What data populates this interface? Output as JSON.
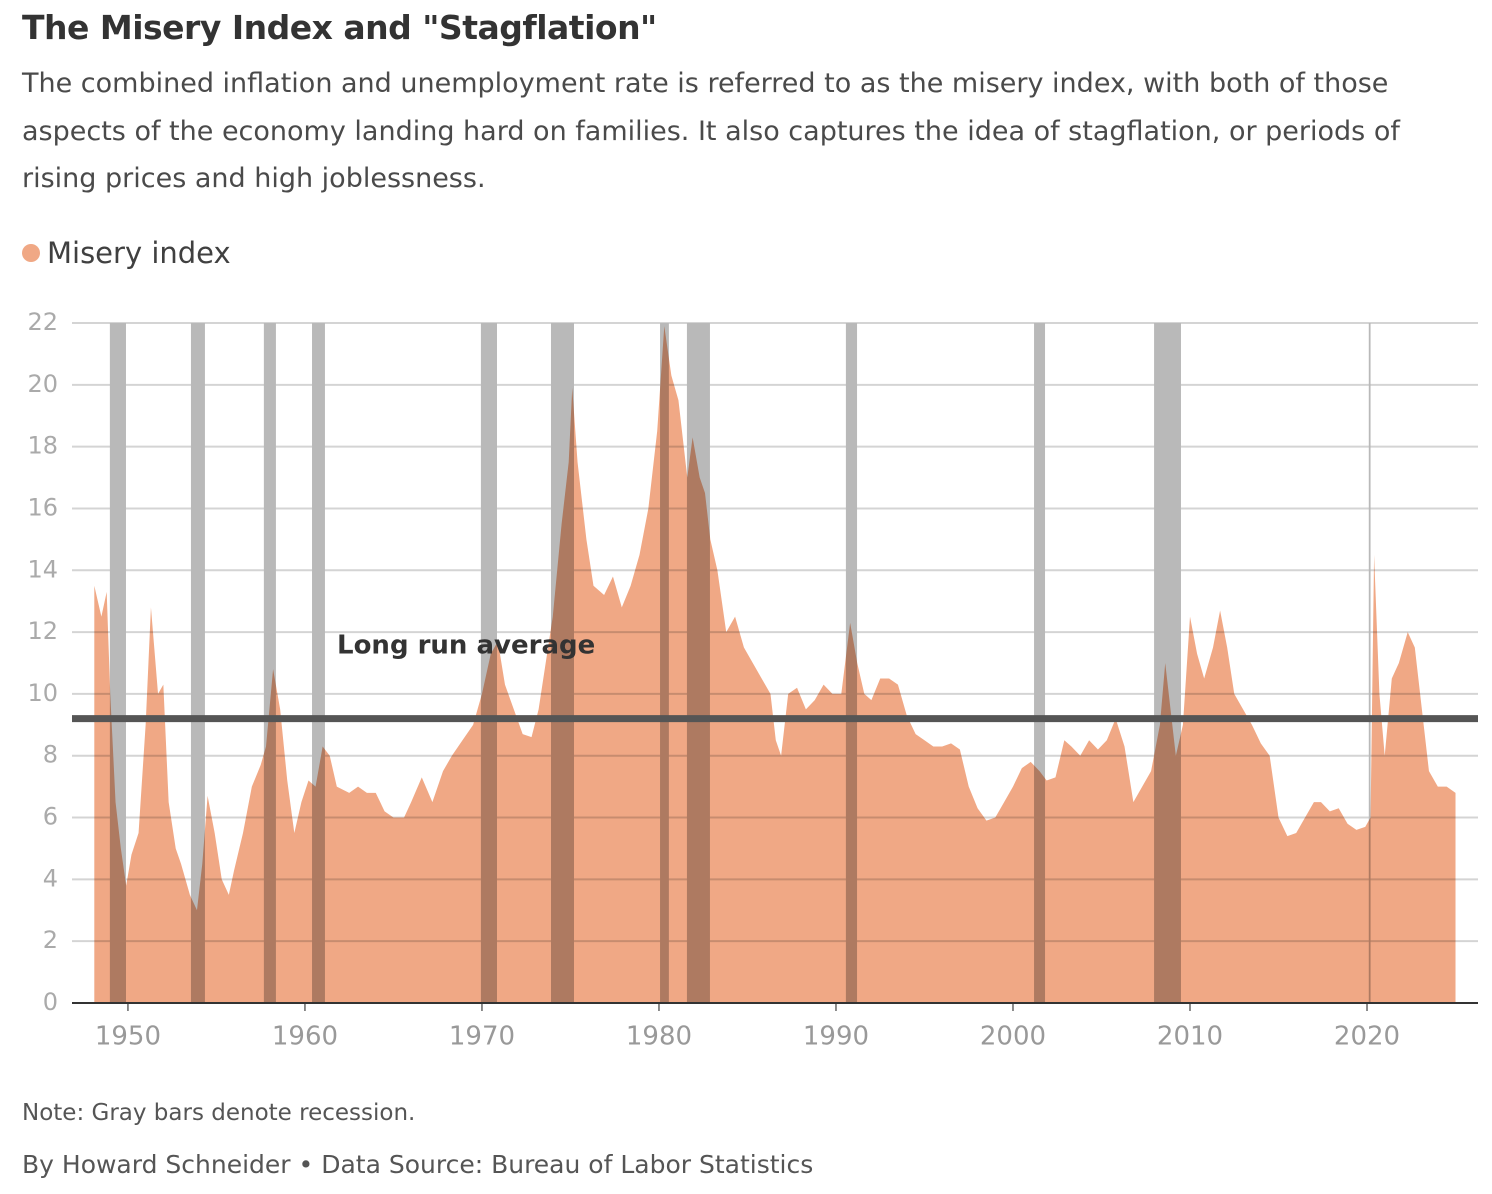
{
  "chart_data": {
    "type": "area",
    "title": "The Misery Index and \"Stagflation\"",
    "subtitle": "The combined inflation and unemployment rate is referred to as the misery index, with both of those aspects of the economy landing hard on families. It also captures the idea of stagflation, or periods of rising prices and high joblessness.",
    "note": "Note: Gray bars denote recession.",
    "source": "By Howard Schneider • Data Source: Bureau of Labor Statistics",
    "x": [
      1948.1,
      1948.5,
      1948.8,
      1949.0,
      1949.3,
      1949.6,
      1949.9,
      1950.2,
      1950.6,
      1951.0,
      1951.3,
      1951.7,
      1952.0,
      1952.3,
      1952.7,
      1953.0,
      1953.5,
      1953.9,
      1954.2,
      1954.5,
      1954.9,
      1955.3,
      1955.7,
      1956.0,
      1956.5,
      1957.0,
      1957.5,
      1957.8,
      1958.2,
      1958.6,
      1959.0,
      1959.4,
      1959.8,
      1960.2,
      1960.6,
      1961.0,
      1961.4,
      1961.8,
      1962.5,
      1963.0,
      1963.5,
      1964.0,
      1964.5,
      1965.0,
      1965.6,
      1966.0,
      1966.6,
      1967.2,
      1967.8,
      1968.3,
      1968.9,
      1969.5,
      1970.0,
      1970.5,
      1970.9,
      1971.3,
      1971.8,
      1972.3,
      1972.8,
      1973.2,
      1973.6,
      1974.0,
      1974.5,
      1974.9,
      1975.1,
      1975.4,
      1975.9,
      1976.3,
      1976.9,
      1977.4,
      1977.9,
      1978.4,
      1978.9,
      1979.4,
      1979.9,
      1980.3,
      1980.7,
      1981.1,
      1981.6,
      1981.9,
      1982.3,
      1982.6,
      1982.9,
      1983.3,
      1983.8,
      1984.3,
      1984.8,
      1985.3,
      1985.8,
      1986.3,
      1986.6,
      1986.9,
      1987.3,
      1987.8,
      1988.3,
      1988.8,
      1989.3,
      1989.8,
      1990.3,
      1990.8,
      1991.2,
      1991.6,
      1992.0,
      1992.5,
      1993.0,
      1993.5,
      1994.0,
      1994.5,
      1995.0,
      1995.5,
      1996.0,
      1996.5,
      1997.0,
      1997.5,
      1998.0,
      1998.5,
      1999.0,
      1999.5,
      2000.0,
      2000.5,
      2001.0,
      2001.5,
      2001.9,
      2002.4,
      2002.9,
      2003.3,
      2003.8,
      2004.3,
      2004.8,
      2005.3,
      2005.8,
      2006.3,
      2006.8,
      2007.3,
      2007.8,
      2008.3,
      2008.6,
      2008.9,
      2009.2,
      2009.6,
      2010.0,
      2010.4,
      2010.8,
      2011.3,
      2011.7,
      2012.1,
      2012.5,
      2013.0,
      2013.5,
      2014.0,
      2014.5,
      2015.0,
      2015.5,
      2016.0,
      2016.5,
      2017.0,
      2017.4,
      2017.9,
      2018.4,
      2018.9,
      2019.4,
      2019.9,
      2020.2,
      2020.4,
      2020.7,
      2021.0,
      2021.4,
      2021.8,
      2022.3,
      2022.7,
      2023.1,
      2023.5,
      2024.0,
      2024.5,
      2025.0
    ],
    "series": [
      {
        "name": "Misery index",
        "color": "#f0a885",
        "values": [
          13.5,
          12.5,
          13.3,
          10,
          6.5,
          5,
          3.8,
          4.8,
          5.5,
          9,
          12.8,
          10,
          10.3,
          6.5,
          5,
          4.5,
          3.5,
          3,
          4.5,
          6.7,
          5.5,
          4,
          3.5,
          4.3,
          5.5,
          7,
          7.7,
          8.3,
          10.8,
          9.5,
          7.2,
          5.5,
          6.5,
          7.2,
          7,
          8.3,
          8,
          7,
          6.8,
          7,
          6.8,
          6.8,
          6.2,
          6,
          6,
          6.5,
          7.3,
          6.5,
          7.5,
          8,
          8.5,
          9,
          10,
          11.3,
          11.7,
          10.3,
          9.5,
          8.7,
          8.6,
          9.5,
          11,
          12.5,
          15.5,
          17.5,
          19.9,
          17.5,
          15,
          13.5,
          13.2,
          13.8,
          12.8,
          13.5,
          14.5,
          16,
          18.5,
          21.9,
          20.3,
          19.5,
          17,
          18.3,
          17,
          16.5,
          15,
          14,
          12,
          12.5,
          11.5,
          11,
          10.5,
          10,
          8.5,
          8,
          10,
          10.2,
          9.5,
          9.8,
          10.3,
          10,
          10,
          12.3,
          11,
          10,
          9.8,
          10.5,
          10.5,
          10.3,
          9.3,
          8.7,
          8.5,
          8.3,
          8.3,
          8.4,
          8.2,
          7,
          6.3,
          5.9,
          6,
          6.5,
          7,
          7.6,
          7.8,
          7.5,
          7.2,
          7.3,
          8.5,
          8.3,
          8,
          8.5,
          8.2,
          8.5,
          9.2,
          8.3,
          6.5,
          7,
          7.5,
          9,
          11,
          9.5,
          8,
          9,
          12.5,
          11.3,
          10.5,
          11.5,
          12.7,
          11.5,
          10,
          9.5,
          9,
          8.4,
          8,
          6,
          5.4,
          5.5,
          6,
          6.5,
          6.5,
          6.2,
          6.3,
          5.8,
          5.6,
          5.7,
          6,
          14.5,
          10,
          8,
          10.5,
          11,
          12,
          11.5,
          9.5,
          7.5,
          7,
          7,
          6.8
        ]
      }
    ],
    "recessions": [
      [
        1948.98,
        1949.89
      ],
      [
        1953.56,
        1954.35
      ],
      [
        1957.68,
        1958.36
      ],
      [
        1960.4,
        1961.13
      ],
      [
        1969.94,
        1970.85
      ],
      [
        1973.9,
        1975.2
      ],
      [
        1980.06,
        1980.56
      ],
      [
        1981.58,
        1982.88
      ],
      [
        1990.56,
        1991.19
      ],
      [
        2001.19,
        2001.81
      ],
      [
        2007.97,
        2009.49
      ],
      [
        2020.1,
        2020.2
      ]
    ],
    "recession_color": "#b9b9b9",
    "reference_line": {
      "label": "Long run average",
      "value": 9.2,
      "color": "#555555"
    },
    "xlim": [
      1946.84,
      2026.27
    ],
    "ylim": [
      0,
      22
    ],
    "xticks": [
      1950,
      1960,
      1970,
      1980,
      1990,
      2000,
      2010,
      2020
    ],
    "yticks": [
      0,
      2,
      4,
      6,
      8,
      10,
      12,
      14,
      16,
      18,
      20,
      22
    ],
    "grid": true
  }
}
